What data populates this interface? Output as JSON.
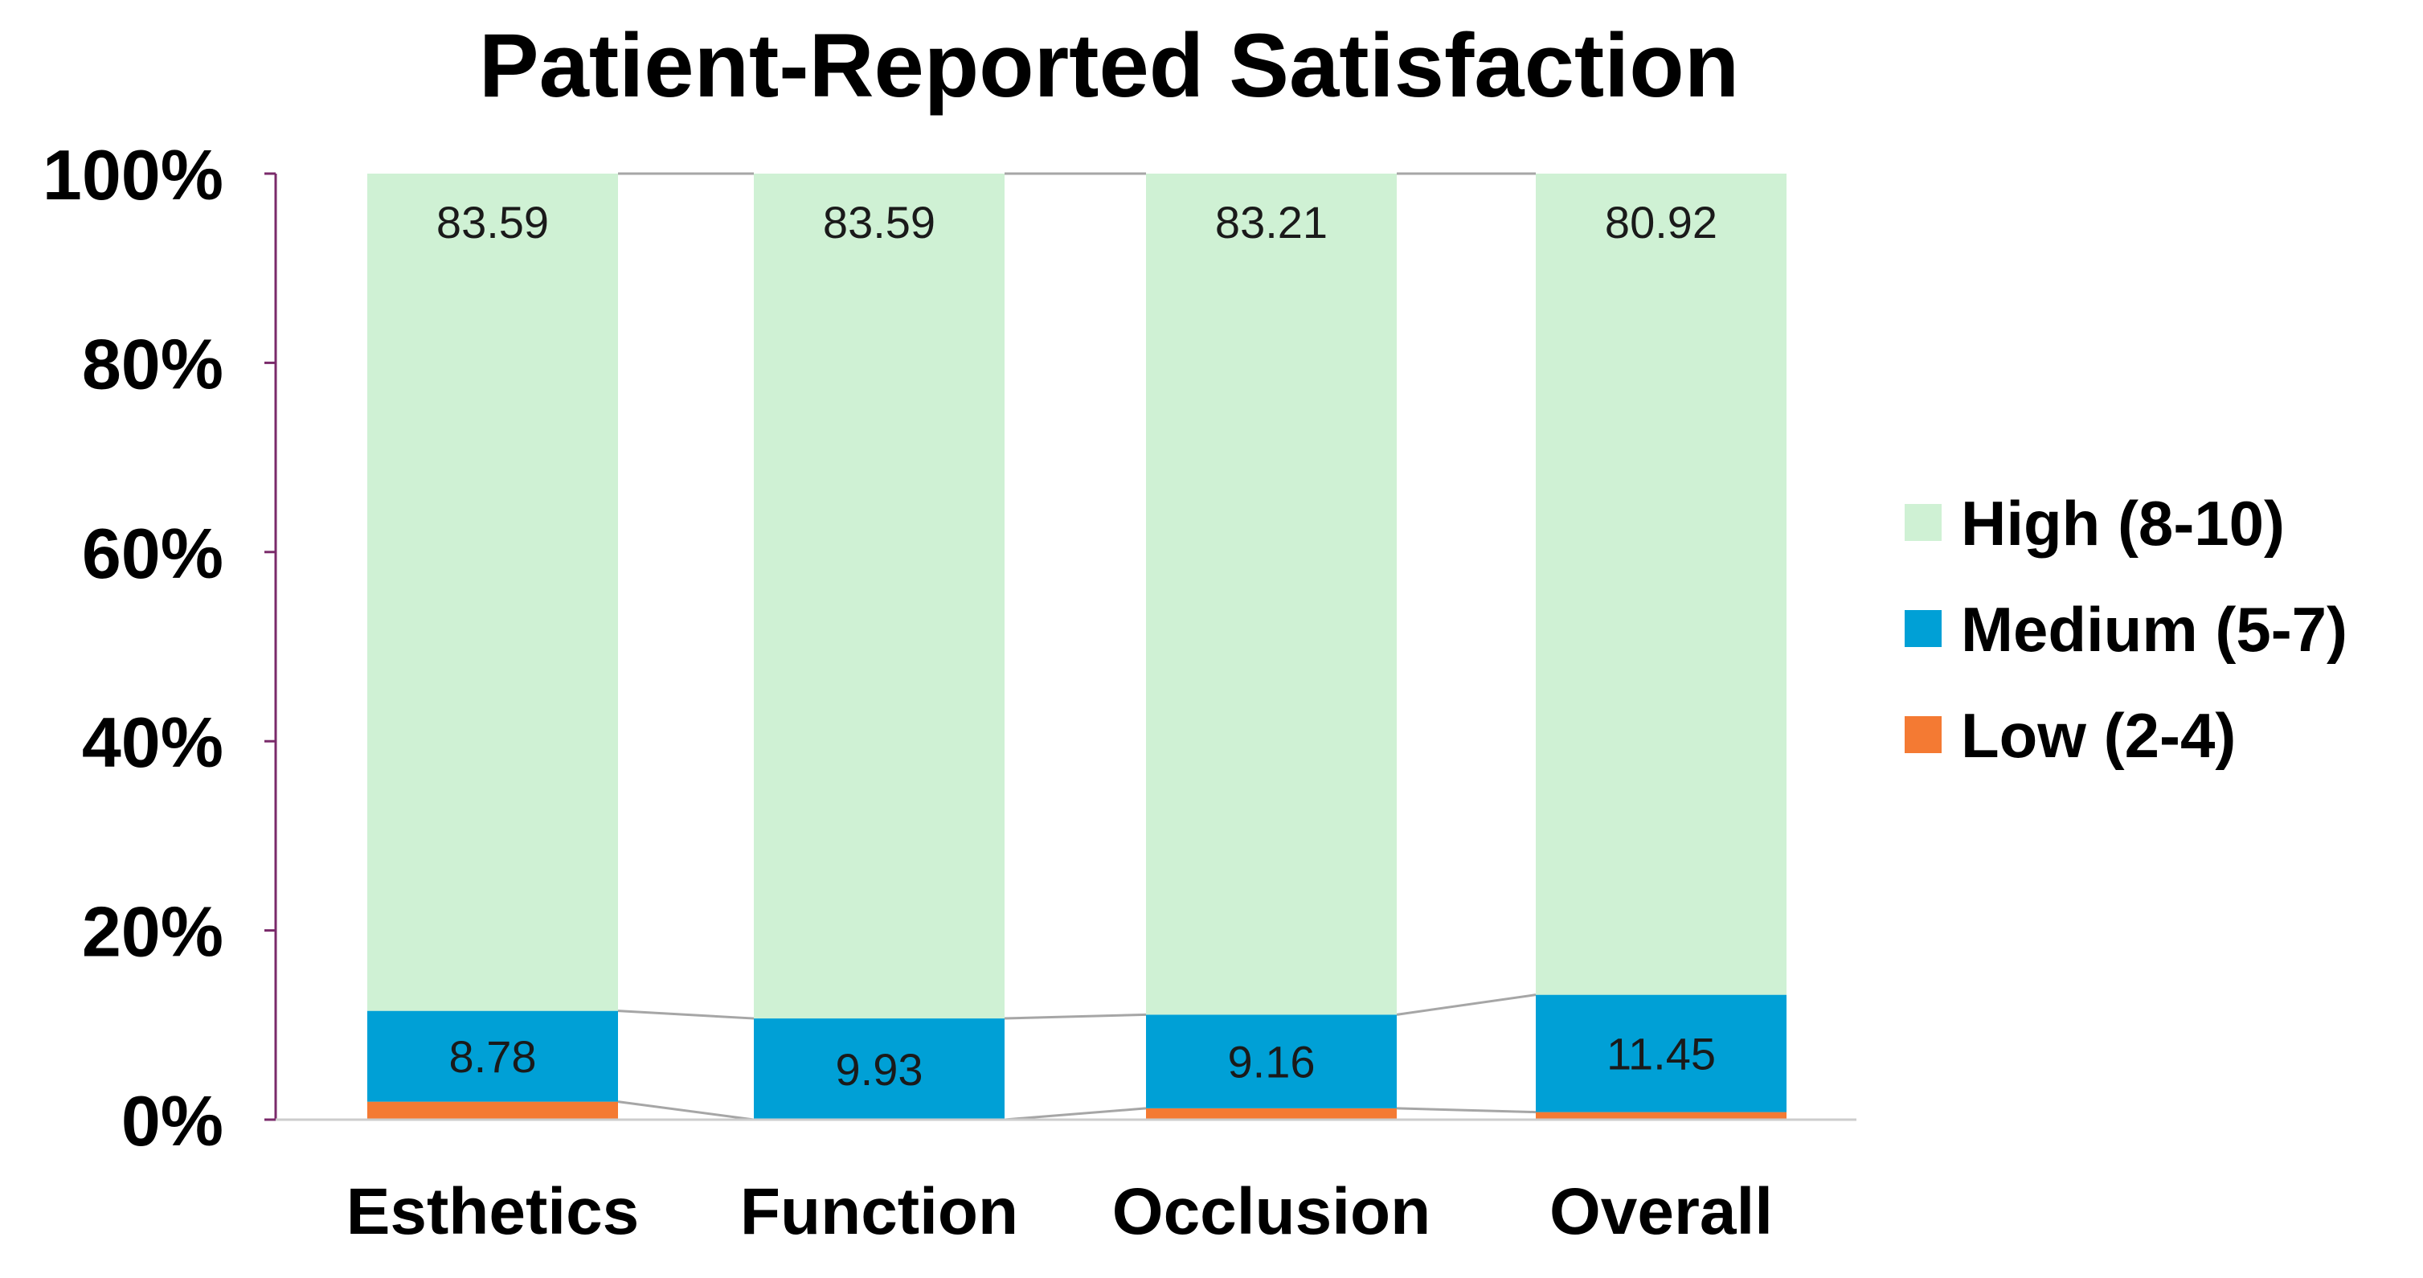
{
  "chart_data": {
    "type": "bar",
    "stacked": true,
    "percent": true,
    "title": "Patient-Reported Satisfaction",
    "xlabel": "",
    "ylabel": "",
    "ylim": [
      0,
      100
    ],
    "yticks": [
      "0%",
      "20%",
      "40%",
      "60%",
      "80%",
      "100%"
    ],
    "categories": [
      "Esthetics",
      "Function",
      "Occlusion",
      "Overall"
    ],
    "series": [
      {
        "name": "Low (2-4)",
        "color": "#F47A33",
        "values": [
          1.9,
          0.0,
          1.2,
          0.8
        ],
        "labels": [
          "",
          "",
          "",
          ""
        ]
      },
      {
        "name": "Medium (5-7)",
        "color": "#00A0D6",
        "values": [
          9.6,
          10.7,
          9.9,
          12.4
        ],
        "labels": [
          "8.78",
          "9.93",
          "9.16",
          "11.45"
        ]
      },
      {
        "name": "High (8-10)",
        "color": "#CFF1D4",
        "values": [
          88.5,
          89.3,
          88.9,
          86.8
        ],
        "labels": [
          "83.59",
          "83.59",
          "83.21",
          "80.92"
        ]
      }
    ],
    "legend_order": [
      "High (8-10)",
      "Medium (5-7)",
      "Low (2-4)"
    ],
    "legend_position": "right",
    "series_connector_lines": true,
    "grid": false
  }
}
